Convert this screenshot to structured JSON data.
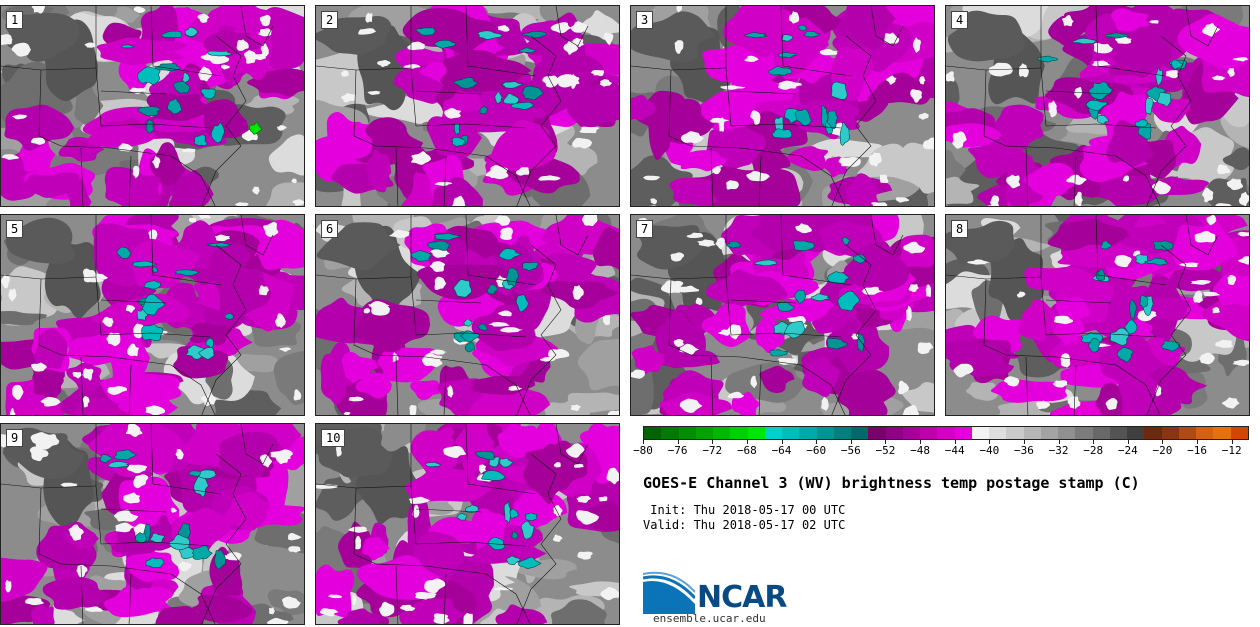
{
  "page": {
    "title": "GOES-E Channel 3 (WV) brightness temp postage stamp (C)",
    "init_label": " Init: Thu 2018-05-17 00 UTC",
    "valid_label": "Valid: Thu 2018-05-17 02 UTC",
    "logo_text": "NCAR",
    "url": "ensemble.ucar.edu"
  },
  "members": [
    {
      "label": "1"
    },
    {
      "label": "2"
    },
    {
      "label": "3"
    },
    {
      "label": "4"
    },
    {
      "label": "5"
    },
    {
      "label": "6"
    },
    {
      "label": "7"
    },
    {
      "label": "8"
    },
    {
      "label": "9"
    },
    {
      "label": "10"
    }
  ],
  "chart_data": {
    "type": "heatmap",
    "title": "GOES-E Channel 3 (WV) brightness temp postage stamp (C)",
    "units": "C",
    "colorbar": {
      "tick_labels": [
        "−80",
        "−76",
        "−72",
        "−68",
        "−64",
        "−60",
        "−56",
        "−52",
        "−48",
        "−44",
        "−40",
        "−36",
        "−32",
        "−28",
        "−24",
        "−20",
        "−16",
        "−12"
      ],
      "tick_values": [
        -80,
        -76,
        -72,
        -68,
        -64,
        -60,
        -56,
        -52,
        -48,
        -44,
        -40,
        -36,
        -32,
        -28,
        -24,
        -20,
        -16,
        -12
      ],
      "range": [
        -80,
        -10
      ],
      "bins": [
        {
          "from": -80,
          "to": -78,
          "color": "#006400"
        },
        {
          "from": -78,
          "to": -76,
          "color": "#007a00"
        },
        {
          "from": -76,
          "to": -74,
          "color": "#008f00"
        },
        {
          "from": -74,
          "to": -72,
          "color": "#00a300"
        },
        {
          "from": -72,
          "to": -70,
          "color": "#00b800"
        },
        {
          "from": -70,
          "to": -68,
          "color": "#00d000"
        },
        {
          "from": -68,
          "to": -66,
          "color": "#00e600"
        },
        {
          "from": -66,
          "to": -64,
          "color": "#00cfcf"
        },
        {
          "from": -64,
          "to": -62,
          "color": "#00bcbc"
        },
        {
          "from": -62,
          "to": -60,
          "color": "#00a8a8"
        },
        {
          "from": -60,
          "to": -58,
          "color": "#009595"
        },
        {
          "from": -58,
          "to": -56,
          "color": "#007f7f"
        },
        {
          "from": -56,
          "to": -54,
          "color": "#006a6a"
        },
        {
          "from": -54,
          "to": -52,
          "color": "#7a006e"
        },
        {
          "from": -52,
          "to": -50,
          "color": "#900084"
        },
        {
          "from": -50,
          "to": -48,
          "color": "#a6009a"
        },
        {
          "from": -48,
          "to": -46,
          "color": "#bc00b0"
        },
        {
          "from": -46,
          "to": -44,
          "color": "#d000c6"
        },
        {
          "from": -44,
          "to": -42,
          "color": "#e400dc"
        },
        {
          "from": -42,
          "to": -40,
          "color": "#f2f2f2"
        },
        {
          "from": -40,
          "to": -38,
          "color": "#dedede"
        },
        {
          "from": -38,
          "to": -36,
          "color": "#cacaca"
        },
        {
          "from": -36,
          "to": -34,
          "color": "#b6b6b6"
        },
        {
          "from": -34,
          "to": -32,
          "color": "#a3a3a3"
        },
        {
          "from": -32,
          "to": -30,
          "color": "#909090"
        },
        {
          "from": -30,
          "to": -28,
          "color": "#7c7c7c"
        },
        {
          "from": -28,
          "to": -26,
          "color": "#686868"
        },
        {
          "from": -26,
          "to": -24,
          "color": "#545454"
        },
        {
          "from": -24,
          "to": -22,
          "color": "#404040"
        },
        {
          "from": -22,
          "to": -20,
          "color": "#6b2a10"
        },
        {
          "from": -20,
          "to": -18,
          "color": "#8a3412"
        },
        {
          "from": -18,
          "to": -16,
          "color": "#b04a14"
        },
        {
          "from": -16,
          "to": -14,
          "color": "#d66010"
        },
        {
          "from": -14,
          "to": -12,
          "color": "#e8700a"
        },
        {
          "from": -12,
          "to": -10,
          "color": "#d04800"
        }
      ]
    }
  }
}
